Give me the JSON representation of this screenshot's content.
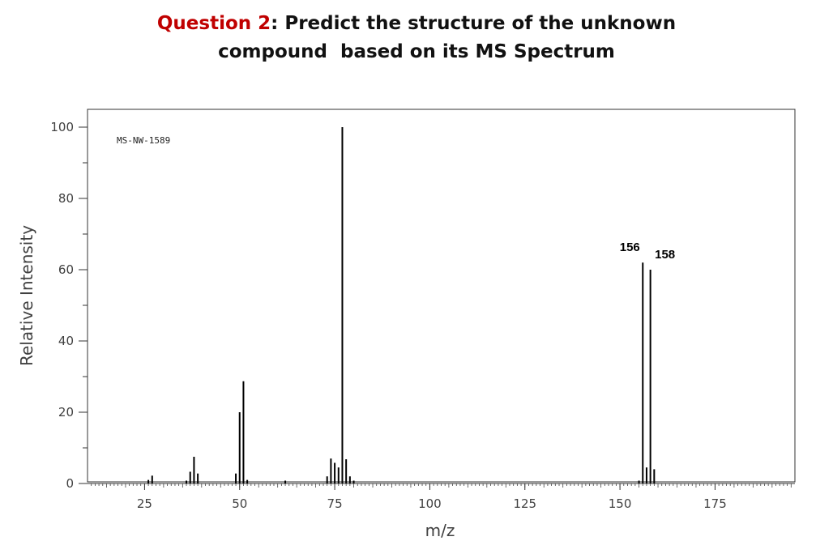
{
  "title": {
    "prefix": "Question 2",
    "rest_line1": ": Predict the structure of the unknown",
    "line2": "compound  based on its MS Spectrum",
    "prefix_color": "#c00000"
  },
  "chart_data": {
    "type": "bar",
    "annotation": "MS-NW-1589",
    "xlabel": "m/z",
    "ylabel": "Relative Intensity",
    "xlim": [
      10,
      196
    ],
    "ylim": [
      0,
      100
    ],
    "x_ticks": [
      25,
      50,
      75,
      100,
      125,
      150,
      175
    ],
    "y_ticks": [
      0,
      20,
      40,
      60,
      80,
      100
    ],
    "grid": false,
    "peak_labels": [
      {
        "mz": 156,
        "text": "156"
      },
      {
        "mz": 158,
        "text": "158"
      }
    ],
    "peaks": [
      {
        "mz": 26,
        "intensity": 1
      },
      {
        "mz": 27,
        "intensity": 2.2
      },
      {
        "mz": 36,
        "intensity": 0.8
      },
      {
        "mz": 37,
        "intensity": 3.3
      },
      {
        "mz": 38,
        "intensity": 7.5
      },
      {
        "mz": 39,
        "intensity": 2.8
      },
      {
        "mz": 49,
        "intensity": 2.8
      },
      {
        "mz": 50,
        "intensity": 20
      },
      {
        "mz": 51,
        "intensity": 28.7
      },
      {
        "mz": 52,
        "intensity": 1
      },
      {
        "mz": 62,
        "intensity": 0.8
      },
      {
        "mz": 73,
        "intensity": 2
      },
      {
        "mz": 74,
        "intensity": 7
      },
      {
        "mz": 75,
        "intensity": 5.8
      },
      {
        "mz": 76,
        "intensity": 4.5
      },
      {
        "mz": 77,
        "intensity": 100
      },
      {
        "mz": 78,
        "intensity": 6.8
      },
      {
        "mz": 79,
        "intensity": 2
      },
      {
        "mz": 80,
        "intensity": 0.8
      },
      {
        "mz": 155,
        "intensity": 0.8
      },
      {
        "mz": 156,
        "intensity": 62
      },
      {
        "mz": 157,
        "intensity": 4.5
      },
      {
        "mz": 158,
        "intensity": 60
      },
      {
        "mz": 159,
        "intensity": 4
      }
    ]
  }
}
